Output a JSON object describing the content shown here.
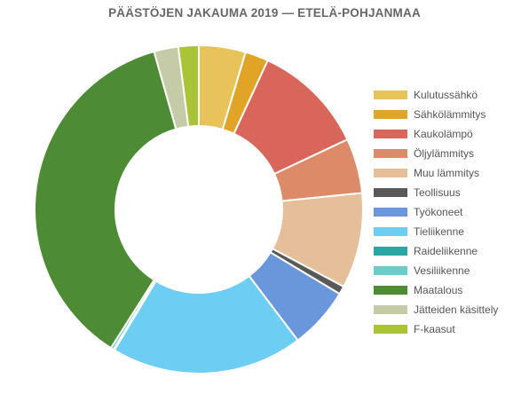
{
  "chart_data": {
    "type": "pie",
    "variant": "donut",
    "title": "PÄÄSTÖJEN JAKAUMA 2019 — ETELÄ-POHJANMAA",
    "legend_position": "right",
    "categories": [
      "Kulutussähkö",
      "Sähkölämmitys",
      "Kaukolämpö",
      "Öljylämmitys",
      "Muu lämmitys",
      "Teollisuus",
      "Työkoneet",
      "Tieliikenne",
      "Raideliikenne",
      "Vesiliikenne",
      "Maatalous",
      "Jätteiden käsittely",
      "F-kaasut"
    ],
    "values": [
      4.6,
      2.3,
      11.1,
      5.4,
      9.4,
      0.8,
      6.1,
      18.9,
      0.1,
      0.3,
      36.6,
      2.4,
      2.0
    ],
    "colors": [
      "#e8c35a",
      "#e0a526",
      "#d9665a",
      "#dd8a68",
      "#e4bf9a",
      "#595959",
      "#6a96dc",
      "#6dcdf2",
      "#2aa7a5",
      "#6fcbc8",
      "#4e8b35",
      "#c5cba7",
      "#a9c437"
    ]
  }
}
